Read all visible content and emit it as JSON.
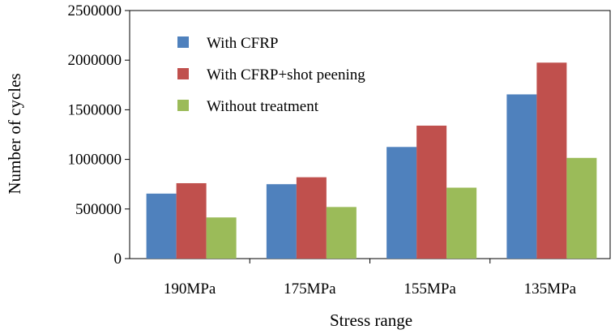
{
  "chart_data": {
    "type": "bar",
    "title": "",
    "xlabel": "Stress range",
    "ylabel": "Number of cycles",
    "categories": [
      "190MPa",
      "175MPa",
      "155MPa",
      "135MPa"
    ],
    "ylim": [
      0,
      2500000
    ],
    "yticks": [
      0,
      500000,
      1000000,
      1500000,
      2000000,
      2500000
    ],
    "ytick_labels": [
      "0",
      "500000",
      "1000000",
      "1500000",
      "2000000",
      "2500000"
    ],
    "grid": false,
    "legend_position": "top-left",
    "series": [
      {
        "name": "With CFRP",
        "color": "#4F81BD",
        "values": [
          655000,
          750000,
          1125000,
          1655000
        ]
      },
      {
        "name": "With CFRP+shot peening",
        "color": "#C0504D",
        "values": [
          760000,
          820000,
          1340000,
          1975000
        ]
      },
      {
        "name": "Without treatment",
        "color": "#9BBB59",
        "values": [
          415000,
          520000,
          715000,
          1015000
        ]
      }
    ]
  }
}
